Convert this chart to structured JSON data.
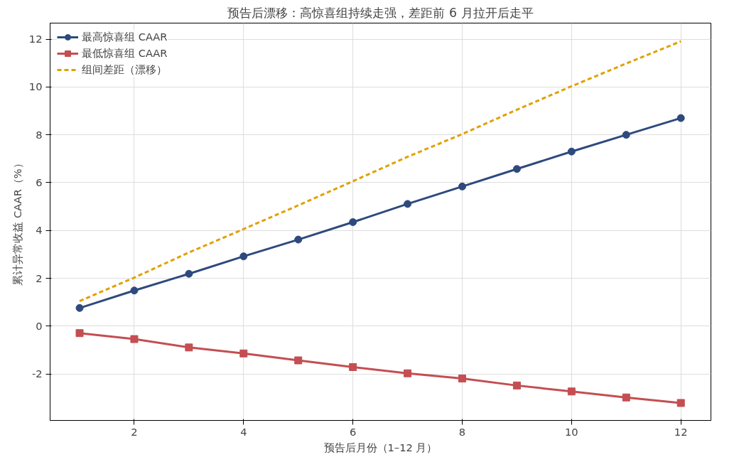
{
  "chart_data": {
    "type": "line",
    "title": "预告后漂移：高惊喜组持续走强，差距前 6 月拉开后走平",
    "xlabel": "预告后月份（1–12 月）",
    "ylabel": "累计异常收益 CAAR（%）",
    "x": [
      1,
      2,
      3,
      4,
      5,
      6,
      7,
      8,
      9,
      10,
      11,
      12
    ],
    "series": [
      {
        "name": "最高惊喜组 CAAR",
        "color": "#2e4a7d",
        "marker": "circle",
        "line_style": "solid",
        "values": [
          0.76,
          1.49,
          2.19,
          2.92,
          3.62,
          4.35,
          5.11,
          5.84,
          6.57,
          7.3,
          8.0,
          8.7
        ]
      },
      {
        "name": "最低惊喜组 CAAR",
        "color": "#c44e52",
        "marker": "square",
        "line_style": "solid",
        "values": [
          -0.29,
          -0.54,
          -0.89,
          -1.14,
          -1.43,
          -1.71,
          -1.97,
          -2.19,
          -2.48,
          -2.73,
          -2.98,
          -3.21
        ]
      },
      {
        "name": "组间差距（漂移）",
        "color": "#e0a000",
        "marker": "none",
        "line_style": "dashed",
        "values": [
          1.05,
          2.03,
          3.08,
          4.06,
          5.05,
          6.06,
          7.08,
          8.03,
          9.05,
          10.03,
          10.98,
          11.91
        ]
      }
    ],
    "xlim": [
      0.46,
      12.55
    ],
    "ylim": [
      -3.94,
      12.67
    ],
    "xticks": [
      2,
      4,
      6,
      8,
      10,
      12
    ],
    "yticks": [
      -2,
      0,
      2,
      4,
      6,
      8,
      10,
      12
    ],
    "grid": true,
    "legend": "top left"
  }
}
